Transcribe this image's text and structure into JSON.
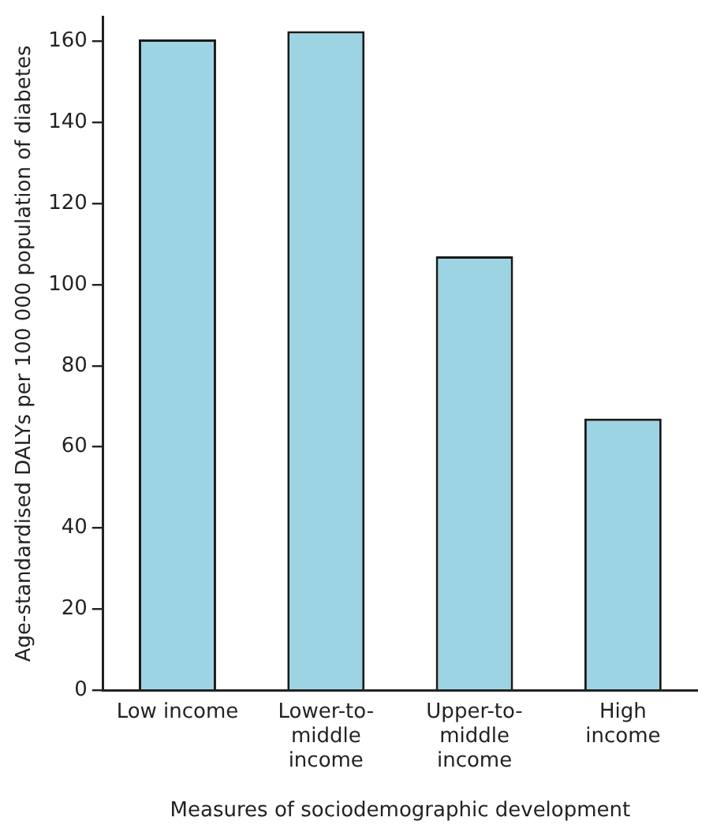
{
  "chart_data": {
    "type": "bar",
    "xlabel": "Measures of sociodemographic development",
    "ylabel": "Age-standardised DALYs per 100 000 population of diabetes",
    "categories": [
      "Low income",
      "Lower-to-middle income",
      "Upper-to-middle income",
      "High income"
    ],
    "values": [
      160.5,
      162.5,
      107,
      67
    ],
    "color": "#9dd4e4",
    "ylim": [
      0,
      166
    ],
    "yticks": [
      0,
      20,
      40,
      60,
      80,
      100,
      120,
      140,
      160
    ],
    "grid": false,
    "legend": false
  }
}
